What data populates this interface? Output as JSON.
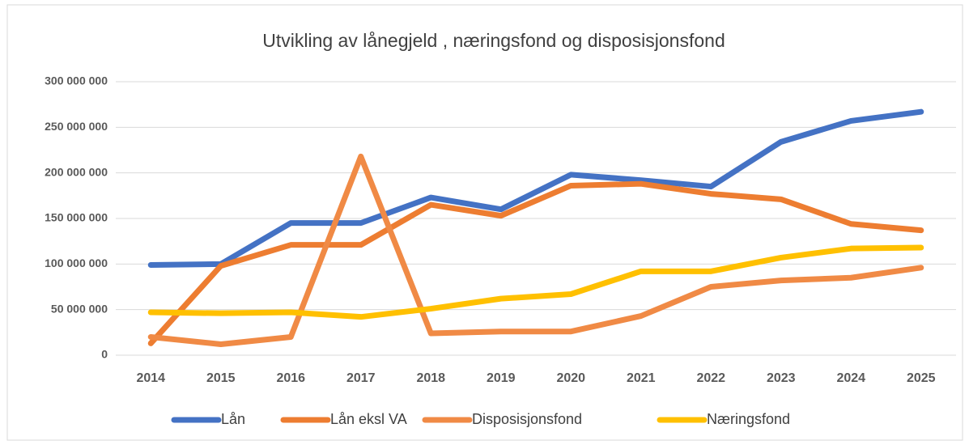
{
  "chart_data": {
    "type": "line",
    "title": "Utvikling av lånegjeld , næringsfond og disposisjonsfond",
    "categories": [
      "2014",
      "2015",
      "2016",
      "2017",
      "2018",
      "2019",
      "2020",
      "2021",
      "2022",
      "2023",
      "2024",
      "2025"
    ],
    "series": [
      {
        "name": "Lån",
        "color": "#4472c4",
        "values": [
          99000000,
          100000000,
          145000000,
          145000000,
          173000000,
          160000000,
          198000000,
          192000000,
          185000000,
          234000000,
          257000000,
          267000000
        ]
      },
      {
        "name": "Lån eksl VA",
        "color": "#ed7d31",
        "values": [
          13000000,
          98000000,
          121000000,
          121000000,
          165000000,
          153000000,
          186000000,
          188000000,
          177000000,
          171000000,
          144000000,
          137000000
        ]
      },
      {
        "name": "Disposisjonsfond",
        "color": "#f08a45",
        "values": [
          20000000,
          12000000,
          20000000,
          218000000,
          24000000,
          26000000,
          26000000,
          43000000,
          75000000,
          82000000,
          85000000,
          96000000
        ]
      },
      {
        "name": "Næringsfond",
        "color": "#ffc000",
        "values": [
          47000000,
          46000000,
          47000000,
          42000000,
          51000000,
          62000000,
          67000000,
          92000000,
          92000000,
          107000000,
          117000000,
          118000000
        ]
      }
    ],
    "ylim": [
      0,
      300000000
    ],
    "yticks": [
      {
        "value": 0,
        "label": "0"
      },
      {
        "value": 50000000,
        "label": "50 000 000"
      },
      {
        "value": 100000000,
        "label": "100 000 000"
      },
      {
        "value": 150000000,
        "label": "150 000 000"
      },
      {
        "value": 200000000,
        "label": "200 000 000"
      },
      {
        "value": 250000000,
        "label": "250 000 000"
      },
      {
        "value": 300000000,
        "label": "300 000 000"
      }
    ],
    "grid": true,
    "legend": "bottom"
  }
}
